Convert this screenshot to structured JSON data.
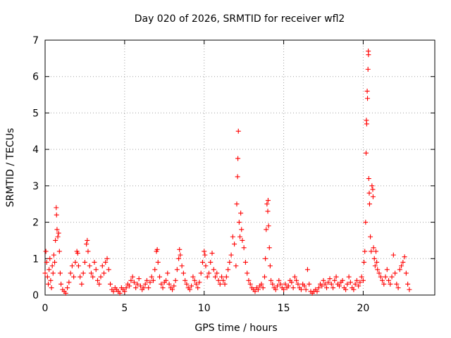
{
  "chart_data": {
    "type": "scatter",
    "title": "Day 020 of 2026, SRMTID for receiver wfl2",
    "xlabel": "GPS time / hours",
    "ylabel": "SRMTID / TECUs",
    "xlim": [
      0,
      24.5
    ],
    "ylim": [
      0,
      7
    ],
    "xticks": [
      0,
      5,
      10,
      15,
      20
    ],
    "xtick_labels": [
      "0",
      "5",
      "10",
      "15",
      "20"
    ],
    "yticks": [
      0,
      1,
      2,
      3,
      4,
      5,
      6,
      7
    ],
    "ytick_labels": [
      "0",
      "1",
      "2",
      "3",
      "4",
      "5",
      "6",
      "7"
    ],
    "grid": true,
    "marker": "plus",
    "color": "#ff0000",
    "series": [
      {
        "name": "SRMTID",
        "points": [
          [
            0.0,
            0.6
          ],
          [
            0.05,
            1.2
          ],
          [
            0.1,
            0.9
          ],
          [
            0.15,
            0.5
          ],
          [
            0.2,
            0.3
          ],
          [
            0.25,
            0.7
          ],
          [
            0.3,
            1.0
          ],
          [
            0.35,
            0.4
          ],
          [
            0.4,
            0.2
          ],
          [
            0.45,
            0.8
          ],
          [
            0.5,
            0.6
          ],
          [
            0.55,
            1.1
          ],
          [
            0.6,
            0.9
          ],
          [
            0.65,
            1.5
          ],
          [
            0.7,
            2.4
          ],
          [
            0.72,
            2.2
          ],
          [
            0.75,
            1.8
          ],
          [
            0.8,
            1.6
          ],
          [
            0.85,
            1.7
          ],
          [
            0.9,
            1.2
          ],
          [
            0.95,
            0.6
          ],
          [
            1.0,
            0.3
          ],
          [
            1.1,
            0.15
          ],
          [
            1.2,
            0.1
          ],
          [
            1.3,
            0.05
          ],
          [
            1.4,
            0.2
          ],
          [
            1.5,
            0.35
          ],
          [
            1.6,
            0.6
          ],
          [
            1.7,
            0.8
          ],
          [
            1.8,
            0.5
          ],
          [
            1.9,
            0.9
          ],
          [
            2.0,
            1.2
          ],
          [
            2.05,
            1.15
          ],
          [
            2.1,
            0.8
          ],
          [
            2.2,
            0.5
          ],
          [
            2.3,
            0.3
          ],
          [
            2.4,
            0.6
          ],
          [
            2.5,
            0.9
          ],
          [
            2.6,
            1.4
          ],
          [
            2.65,
            1.5
          ],
          [
            2.7,
            1.2
          ],
          [
            2.8,
            0.8
          ],
          [
            2.9,
            0.6
          ],
          [
            3.0,
            0.5
          ],
          [
            3.1,
            0.9
          ],
          [
            3.2,
            0.7
          ],
          [
            3.3,
            0.4
          ],
          [
            3.4,
            0.3
          ],
          [
            3.5,
            0.5
          ],
          [
            3.6,
            0.8
          ],
          [
            3.7,
            0.6
          ],
          [
            3.8,
            0.9
          ],
          [
            3.9,
            1.0
          ],
          [
            4.0,
            0.7
          ],
          [
            4.1,
            0.3
          ],
          [
            4.2,
            0.15
          ],
          [
            4.3,
            0.1
          ],
          [
            4.4,
            0.2
          ],
          [
            4.5,
            0.15
          ],
          [
            4.6,
            0.1
          ],
          [
            4.7,
            0.05
          ],
          [
            4.8,
            0.2
          ],
          [
            4.9,
            0.15
          ],
          [
            5.0,
            0.1
          ],
          [
            5.1,
            0.2
          ],
          [
            5.2,
            0.3
          ],
          [
            5.3,
            0.25
          ],
          [
            5.4,
            0.4
          ],
          [
            5.5,
            0.5
          ],
          [
            5.6,
            0.35
          ],
          [
            5.7,
            0.2
          ],
          [
            5.8,
            0.3
          ],
          [
            5.9,
            0.45
          ],
          [
            6.0,
            0.25
          ],
          [
            6.1,
            0.15
          ],
          [
            6.2,
            0.2
          ],
          [
            6.3,
            0.3
          ],
          [
            6.4,
            0.4
          ],
          [
            6.5,
            0.2
          ],
          [
            6.6,
            0.35
          ],
          [
            6.7,
            0.5
          ],
          [
            6.8,
            0.4
          ],
          [
            6.9,
            0.7
          ],
          [
            7.0,
            1.2
          ],
          [
            7.05,
            1.25
          ],
          [
            7.1,
            0.9
          ],
          [
            7.2,
            0.5
          ],
          [
            7.3,
            0.3
          ],
          [
            7.4,
            0.2
          ],
          [
            7.5,
            0.35
          ],
          [
            7.6,
            0.4
          ],
          [
            7.7,
            0.6
          ],
          [
            7.8,
            0.3
          ],
          [
            7.9,
            0.2
          ],
          [
            8.0,
            0.15
          ],
          [
            8.1,
            0.25
          ],
          [
            8.2,
            0.4
          ],
          [
            8.3,
            0.7
          ],
          [
            8.4,
            1.0
          ],
          [
            8.45,
            1.25
          ],
          [
            8.5,
            1.1
          ],
          [
            8.6,
            0.8
          ],
          [
            8.7,
            0.6
          ],
          [
            8.8,
            0.4
          ],
          [
            8.9,
            0.3
          ],
          [
            9.0,
            0.2
          ],
          [
            9.1,
            0.15
          ],
          [
            9.2,
            0.25
          ],
          [
            9.3,
            0.5
          ],
          [
            9.4,
            0.4
          ],
          [
            9.5,
            0.3
          ],
          [
            9.6,
            0.2
          ],
          [
            9.7,
            0.35
          ],
          [
            9.8,
            0.6
          ],
          [
            9.9,
            0.9
          ],
          [
            10.0,
            1.2
          ],
          [
            10.05,
            1.1
          ],
          [
            10.1,
            0.8
          ],
          [
            10.2,
            0.5
          ],
          [
            10.3,
            0.6
          ],
          [
            10.4,
            0.9
          ],
          [
            10.5,
            1.15
          ],
          [
            10.6,
            0.7
          ],
          [
            10.7,
            0.5
          ],
          [
            10.8,
            0.6
          ],
          [
            10.9,
            0.4
          ],
          [
            11.0,
            0.3
          ],
          [
            11.1,
            0.5
          ],
          [
            11.2,
            0.4
          ],
          [
            11.3,
            0.3
          ],
          [
            11.4,
            0.5
          ],
          [
            11.5,
            0.7
          ],
          [
            11.6,
            0.9
          ],
          [
            11.7,
            1.1
          ],
          [
            11.8,
            1.6
          ],
          [
            11.9,
            1.4
          ],
          [
            12.0,
            0.8
          ],
          [
            12.05,
            2.5
          ],
          [
            12.1,
            3.25
          ],
          [
            12.12,
            3.75
          ],
          [
            12.15,
            4.5
          ],
          [
            12.2,
            2.0
          ],
          [
            12.25,
            1.6
          ],
          [
            12.3,
            2.25
          ],
          [
            12.35,
            1.8
          ],
          [
            12.4,
            1.5
          ],
          [
            12.5,
            1.3
          ],
          [
            12.6,
            0.9
          ],
          [
            12.7,
            0.6
          ],
          [
            12.8,
            0.4
          ],
          [
            12.9,
            0.3
          ],
          [
            13.0,
            0.2
          ],
          [
            13.1,
            0.15
          ],
          [
            13.2,
            0.1
          ],
          [
            13.3,
            0.2
          ],
          [
            13.4,
            0.15
          ],
          [
            13.5,
            0.25
          ],
          [
            13.6,
            0.3
          ],
          [
            13.7,
            0.2
          ],
          [
            13.8,
            0.5
          ],
          [
            13.85,
            1.0
          ],
          [
            13.9,
            1.8
          ],
          [
            13.95,
            2.5
          ],
          [
            14.0,
            2.3
          ],
          [
            14.02,
            2.6
          ],
          [
            14.05,
            1.9
          ],
          [
            14.1,
            1.3
          ],
          [
            14.15,
            0.8
          ],
          [
            14.2,
            0.4
          ],
          [
            14.3,
            0.3
          ],
          [
            14.4,
            0.2
          ],
          [
            14.5,
            0.15
          ],
          [
            14.6,
            0.25
          ],
          [
            14.7,
            0.4
          ],
          [
            14.8,
            0.3
          ],
          [
            14.9,
            0.2
          ],
          [
            15.0,
            0.15
          ],
          [
            15.1,
            0.3
          ],
          [
            15.2,
            0.2
          ],
          [
            15.3,
            0.25
          ],
          [
            15.4,
            0.4
          ],
          [
            15.5,
            0.35
          ],
          [
            15.6,
            0.2
          ],
          [
            15.7,
            0.5
          ],
          [
            15.8,
            0.4
          ],
          [
            15.9,
            0.3
          ],
          [
            16.0,
            0.2
          ],
          [
            16.1,
            0.15
          ],
          [
            16.2,
            0.3
          ],
          [
            16.3,
            0.25
          ],
          [
            16.4,
            0.15
          ],
          [
            16.5,
            0.7
          ],
          [
            16.6,
            0.3
          ],
          [
            16.7,
            0.1
          ],
          [
            16.8,
            0.05
          ],
          [
            16.9,
            0.1
          ],
          [
            17.0,
            0.15
          ],
          [
            17.1,
            0.1
          ],
          [
            17.2,
            0.2
          ],
          [
            17.3,
            0.3
          ],
          [
            17.4,
            0.25
          ],
          [
            17.5,
            0.4
          ],
          [
            17.6,
            0.3
          ],
          [
            17.7,
            0.2
          ],
          [
            17.8,
            0.35
          ],
          [
            17.9,
            0.45
          ],
          [
            18.0,
            0.3
          ],
          [
            18.1,
            0.2
          ],
          [
            18.2,
            0.4
          ],
          [
            18.3,
            0.5
          ],
          [
            18.4,
            0.3
          ],
          [
            18.5,
            0.25
          ],
          [
            18.6,
            0.35
          ],
          [
            18.7,
            0.4
          ],
          [
            18.8,
            0.2
          ],
          [
            18.9,
            0.15
          ],
          [
            19.0,
            0.3
          ],
          [
            19.1,
            0.5
          ],
          [
            19.2,
            0.35
          ],
          [
            19.3,
            0.2
          ],
          [
            19.4,
            0.15
          ],
          [
            19.5,
            0.3
          ],
          [
            19.6,
            0.4
          ],
          [
            19.7,
            0.25
          ],
          [
            19.8,
            0.35
          ],
          [
            19.9,
            0.5
          ],
          [
            20.0,
            0.4
          ],
          [
            20.05,
            0.9
          ],
          [
            20.1,
            1.2
          ],
          [
            20.15,
            2.0
          ],
          [
            20.18,
            3.9
          ],
          [
            20.2,
            4.8
          ],
          [
            20.22,
            4.7
          ],
          [
            20.25,
            5.6
          ],
          [
            20.27,
            5.4
          ],
          [
            20.3,
            6.2
          ],
          [
            20.32,
            6.7
          ],
          [
            20.33,
            6.6
          ],
          [
            20.35,
            3.2
          ],
          [
            20.38,
            2.8
          ],
          [
            20.4,
            2.5
          ],
          [
            20.45,
            1.6
          ],
          [
            20.5,
            1.2
          ],
          [
            20.55,
            3.0
          ],
          [
            20.6,
            2.9
          ],
          [
            20.62,
            2.7
          ],
          [
            20.65,
            1.3
          ],
          [
            20.7,
            1.0
          ],
          [
            20.75,
            0.8
          ],
          [
            20.8,
            1.2
          ],
          [
            20.85,
            0.9
          ],
          [
            20.9,
            0.7
          ],
          [
            21.0,
            0.6
          ],
          [
            21.1,
            0.5
          ],
          [
            21.2,
            0.4
          ],
          [
            21.3,
            0.3
          ],
          [
            21.4,
            0.5
          ],
          [
            21.5,
            0.7
          ],
          [
            21.6,
            0.4
          ],
          [
            21.7,
            0.3
          ],
          [
            21.8,
            0.5
          ],
          [
            21.9,
            1.1
          ],
          [
            22.0,
            0.6
          ],
          [
            22.1,
            0.3
          ],
          [
            22.2,
            0.2
          ],
          [
            22.3,
            0.7
          ],
          [
            22.4,
            0.8
          ],
          [
            22.5,
            0.9
          ],
          [
            22.6,
            1.05
          ],
          [
            22.7,
            0.6
          ],
          [
            22.8,
            0.3
          ],
          [
            22.9,
            0.15
          ]
        ]
      }
    ]
  }
}
